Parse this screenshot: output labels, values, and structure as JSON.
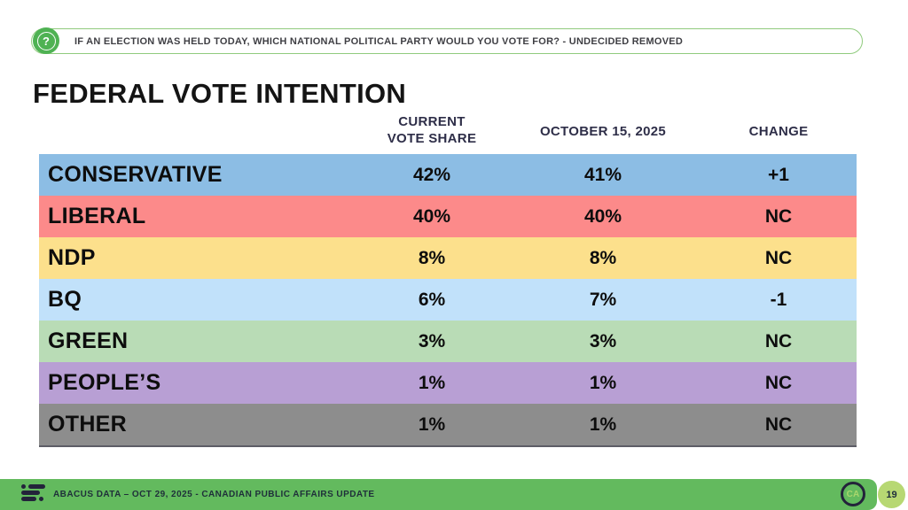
{
  "question_bar": {
    "icon": "question-icon",
    "text": "IF AN ELECTION WAS HELD TODAY, WHICH NATIONAL POLITICAL PARTY WOULD YOU VOTE FOR? - UNDECIDED REMOVED"
  },
  "page_title": "FEDERAL VOTE INTENTION",
  "chart_data": {
    "type": "table",
    "title": "FEDERAL VOTE INTENTION",
    "columns": [
      "CURRENT VOTE SHARE",
      "OCTOBER 15, 2025",
      "CHANGE"
    ],
    "rows": [
      {
        "party": "CONSERVATIVE",
        "current": "42%",
        "previous": "41%",
        "change": "+1",
        "color": "#8cbde4"
      },
      {
        "party": "LIBERAL",
        "current": "40%",
        "previous": "40%",
        "change": "NC",
        "color": "#fc8a8a"
      },
      {
        "party": "NDP",
        "current": "8%",
        "previous": "8%",
        "change": "NC",
        "color": "#fce08c"
      },
      {
        "party": "BQ",
        "current": "6%",
        "previous": "7%",
        "change": "-1",
        "color": "#c1e1fa"
      },
      {
        "party": "GREEN",
        "current": "3%",
        "previous": "3%",
        "change": "NC",
        "color": "#b9dcb6"
      },
      {
        "party": "PEOPLE’S",
        "current": "1%",
        "previous": "1%",
        "change": "NC",
        "color": "#b89fd4"
      },
      {
        "party": "OTHER",
        "current": "1%",
        "previous": "1%",
        "change": "NC",
        "color": "#8d8d8d"
      }
    ]
  },
  "footer": {
    "text": "ABACUS DATA – OCT 29, 2025 - CANADIAN PUBLIC AFFAIRS UPDATE",
    "badge": "CA",
    "page_number": "19",
    "bar_color": "#63ba5e"
  },
  "colors": {
    "accent_green": "#4fb253",
    "banner_border": "#90cb7e",
    "header_text": "#2e2e48"
  }
}
